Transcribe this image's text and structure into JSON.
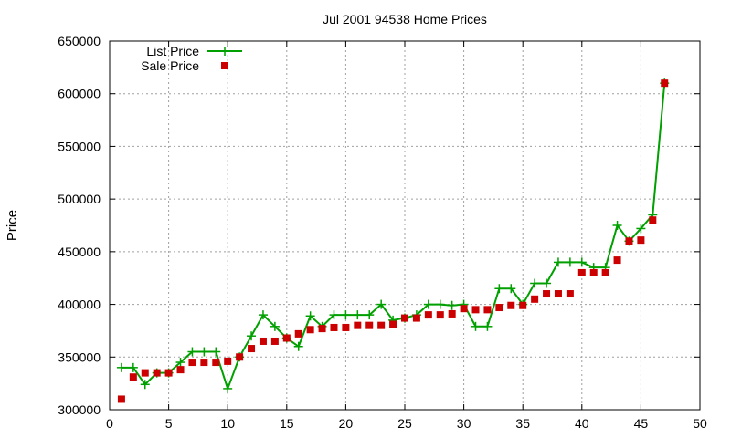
{
  "chart_data": {
    "type": "line",
    "title": "Jul 2001 94538 Home Prices",
    "xlabel": "",
    "ylabel": "Price",
    "xlim": [
      0,
      50
    ],
    "ylim": [
      300000,
      650000
    ],
    "x_ticks": [
      0,
      5,
      10,
      15,
      20,
      25,
      30,
      35,
      40,
      45,
      50
    ],
    "y_ticks": [
      300000,
      350000,
      400000,
      450000,
      500000,
      550000,
      600000,
      650000
    ],
    "grid": true,
    "legend_position": "top-left",
    "series": [
      {
        "name": "List Price",
        "style": "line-plus",
        "color": "#00a000",
        "points": [
          [
            1,
            340000
          ],
          [
            2,
            340000
          ],
          [
            3,
            324000
          ],
          [
            4,
            335000
          ],
          [
            5,
            335000
          ],
          [
            6,
            345000
          ],
          [
            7,
            355000
          ],
          [
            8,
            355000
          ],
          [
            9,
            355000
          ],
          [
            10,
            320000
          ],
          [
            11,
            350000
          ],
          [
            12,
            370000
          ],
          [
            13,
            390000
          ],
          [
            14,
            379000
          ],
          [
            15,
            368000
          ],
          [
            16,
            360000
          ],
          [
            17,
            389000
          ],
          [
            18,
            379000
          ],
          [
            19,
            390000
          ],
          [
            20,
            390000
          ],
          [
            21,
            390000
          ],
          [
            22,
            390000
          ],
          [
            23,
            400000
          ],
          [
            24,
            385000
          ],
          [
            25,
            387000
          ],
          [
            26,
            390000
          ],
          [
            27,
            400000
          ],
          [
            28,
            400000
          ],
          [
            29,
            399000
          ],
          [
            30,
            400000
          ],
          [
            31,
            379000
          ],
          [
            32,
            379000
          ],
          [
            33,
            415000
          ],
          [
            34,
            415000
          ],
          [
            35,
            400000
          ],
          [
            36,
            420000
          ],
          [
            37,
            420000
          ],
          [
            38,
            440000
          ],
          [
            39,
            440000
          ],
          [
            40,
            440000
          ],
          [
            41,
            435000
          ],
          [
            42,
            435000
          ],
          [
            43,
            475000
          ],
          [
            44,
            460000
          ],
          [
            45,
            472000
          ],
          [
            46,
            485000
          ],
          [
            47,
            610000
          ]
        ]
      },
      {
        "name": "Sale Price",
        "style": "square",
        "color": "#cc0000",
        "points": [
          [
            1,
            310000
          ],
          [
            2,
            331000
          ],
          [
            3,
            335000
          ],
          [
            4,
            335000
          ],
          [
            5,
            335000
          ],
          [
            6,
            338000
          ],
          [
            7,
            345000
          ],
          [
            8,
            345000
          ],
          [
            9,
            345000
          ],
          [
            10,
            346000
          ],
          [
            11,
            350000
          ],
          [
            12,
            358000
          ],
          [
            13,
            365000
          ],
          [
            14,
            365000
          ],
          [
            15,
            368000
          ],
          [
            16,
            372000
          ],
          [
            17,
            376000
          ],
          [
            18,
            377000
          ],
          [
            19,
            378000
          ],
          [
            20,
            378000
          ],
          [
            21,
            380000
          ],
          [
            22,
            380000
          ],
          [
            23,
            380000
          ],
          [
            24,
            381000
          ],
          [
            25,
            387000
          ],
          [
            26,
            387000
          ],
          [
            27,
            390000
          ],
          [
            28,
            390000
          ],
          [
            29,
            391000
          ],
          [
            30,
            396000
          ],
          [
            31,
            395000
          ],
          [
            32,
            395000
          ],
          [
            33,
            397000
          ],
          [
            34,
            399000
          ],
          [
            35,
            399000
          ],
          [
            36,
            405000
          ],
          [
            37,
            410000
          ],
          [
            38,
            410000
          ],
          [
            39,
            410000
          ],
          [
            40,
            430000
          ],
          [
            41,
            430000
          ],
          [
            42,
            430000
          ],
          [
            43,
            442000
          ],
          [
            44,
            460000
          ],
          [
            45,
            461000
          ],
          [
            46,
            480000
          ],
          [
            47,
            610000
          ]
        ]
      }
    ]
  }
}
